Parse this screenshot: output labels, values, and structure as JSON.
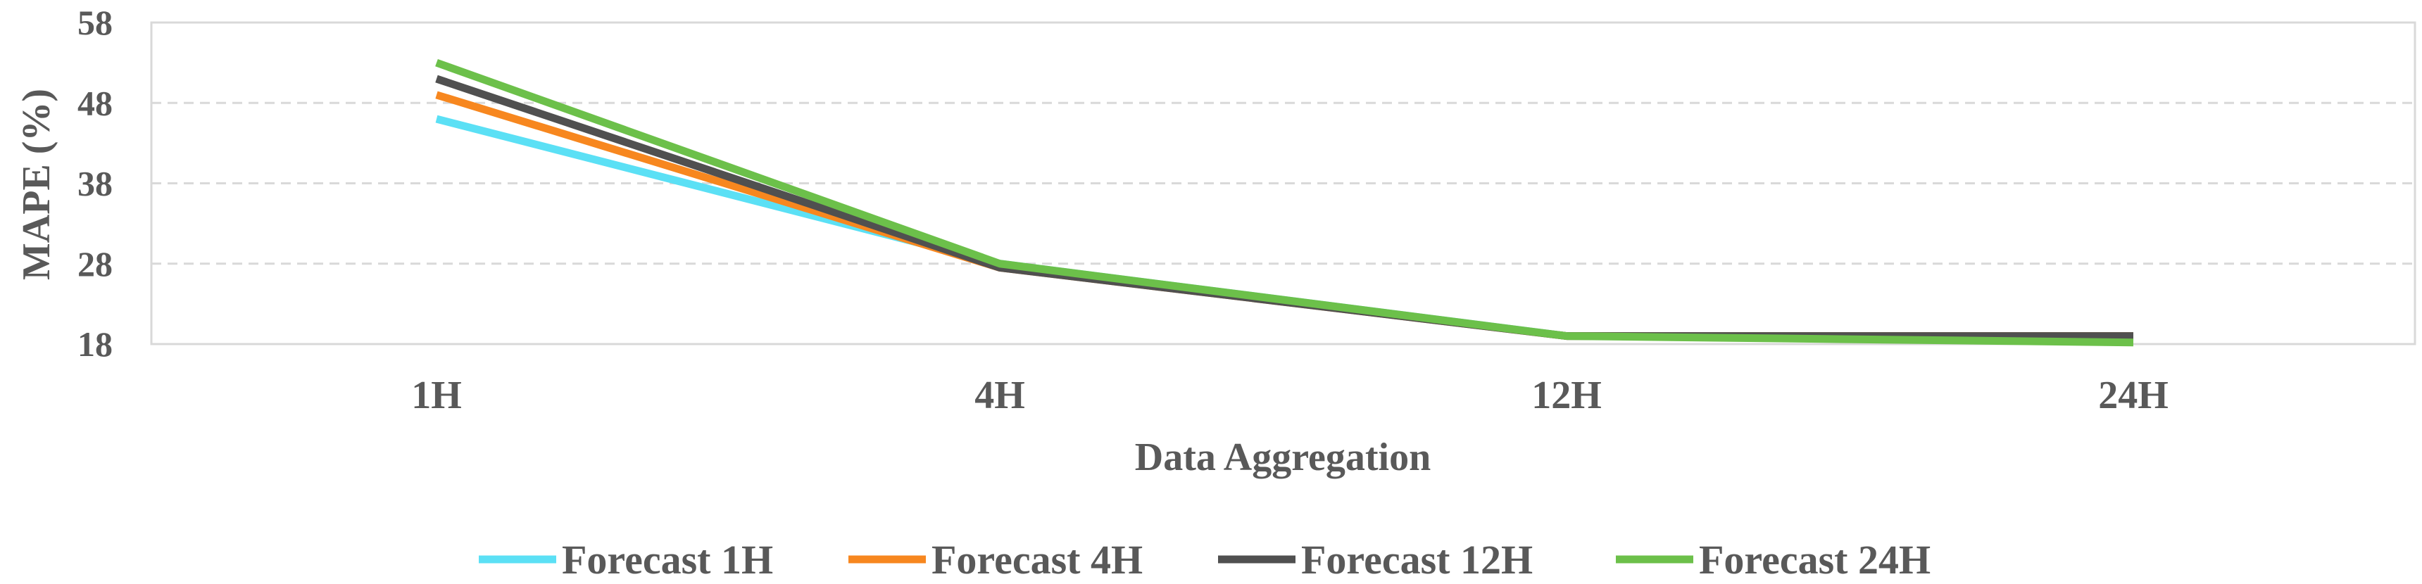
{
  "chart_data": {
    "type": "line",
    "title": "",
    "xlabel": "Data Aggregation",
    "ylabel": "MAPE (%)",
    "categories": [
      "1H",
      "4H",
      "12H",
      "24H"
    ],
    "ylim": [
      18,
      58
    ],
    "yticks": [
      18,
      28,
      38,
      48,
      58
    ],
    "grid": "horizontal dashed",
    "legend_position": "bottom",
    "series": [
      {
        "name": "Forecast 1H",
        "color": "#5BE0F5",
        "values": [
          46,
          28,
          19,
          19
        ]
      },
      {
        "name": "Forecast 4H",
        "color": "#F7871F",
        "values": [
          49,
          27.5,
          19,
          19
        ]
      },
      {
        "name": "Forecast 12H",
        "color": "#505050",
        "values": [
          51,
          27.5,
          19,
          19
        ]
      },
      {
        "name": "Forecast 24H",
        "color": "#6CC04A",
        "values": [
          53,
          28,
          19,
          18.2
        ]
      }
    ]
  }
}
